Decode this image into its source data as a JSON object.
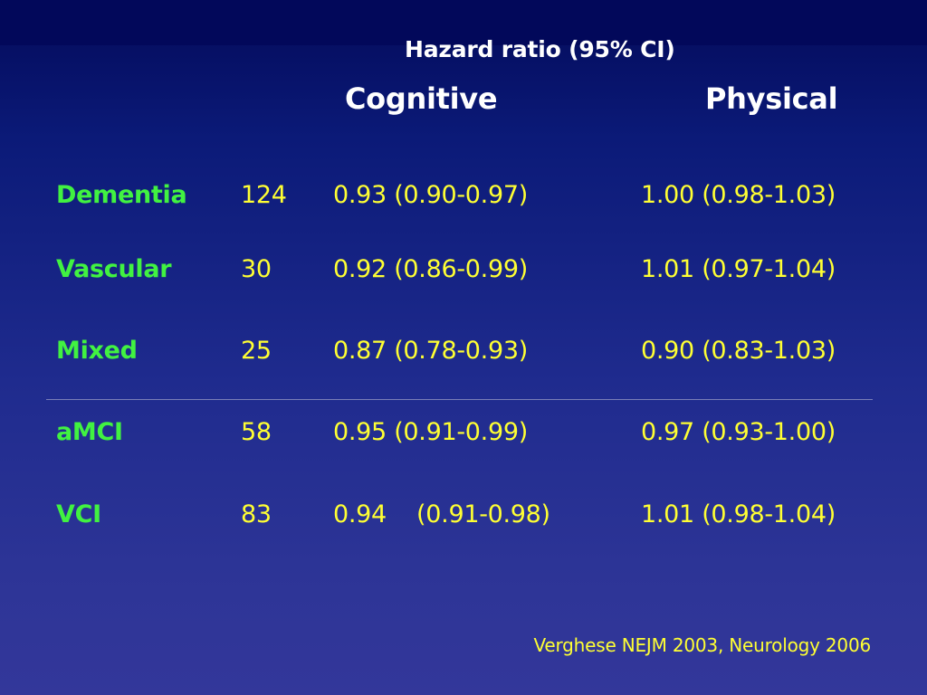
{
  "slide": {
    "title": "Hazard ratio (95% CI)",
    "columns": {
      "cognitive": "Cognitive",
      "physical": "Physical"
    },
    "rows": [
      {
        "label": "Dementia",
        "n": "124",
        "cognitive": "0.93 (0.90-0.97)",
        "physical": "1.00 (0.98-1.03)"
      },
      {
        "label": "Vascular",
        "n": "30",
        "cognitive": "0.92 (0.86-0.99)",
        "physical": "1.01 (0.97-1.04)"
      },
      {
        "label": "Mixed",
        "n": "25",
        "cognitive": "0.87 (0.78-0.93)",
        "physical": "0.90 (0.83-1.03)"
      },
      {
        "label": "aMCI",
        "n": "58",
        "cognitive": "0.95 (0.91-0.99)",
        "physical": "0.97 (0.93-1.00)"
      },
      {
        "label": "VCI",
        "n": "83",
        "cognitive": "0.94    (0.91-0.98)",
        "physical": "1.01 (0.98-1.04)"
      }
    ],
    "citation": "Verghese NEJM 2003, Neurology 2006"
  },
  "colors": {
    "background_top": "#030a5a",
    "background_bottom": "#33379a",
    "heading": "#ffffff",
    "row_label": "#41f241",
    "values": "#ffff33"
  }
}
